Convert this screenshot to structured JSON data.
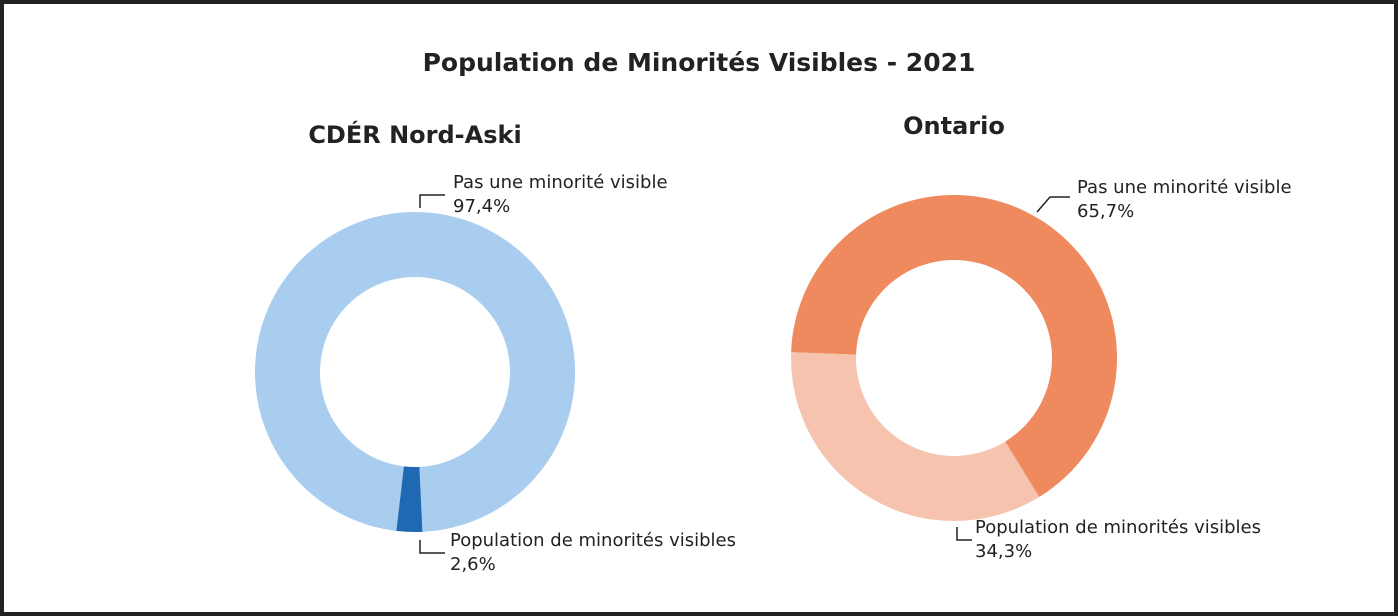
{
  "title": "Population de Minorités Visibles - 2021",
  "chart_data": [
    {
      "type": "donut",
      "title": "CDÉR Nord-Aski",
      "categories": [
        "Pas une minorité visible",
        "Population de minorités visibles"
      ],
      "values": [
        97.4,
        2.6
      ],
      "value_labels": [
        "97,4%",
        "2,6%"
      ],
      "colors": [
        "#a9cdee",
        "#1f69b3"
      ]
    },
    {
      "type": "donut",
      "title": "Ontario",
      "categories": [
        "Pas une minorité visible",
        "Population de minorités visibles"
      ],
      "values": [
        65.7,
        34.3
      ],
      "value_labels": [
        "65,7%",
        "34,3%"
      ],
      "colors": [
        "#ee8a5e",
        "#f6c3ae"
      ]
    }
  ]
}
